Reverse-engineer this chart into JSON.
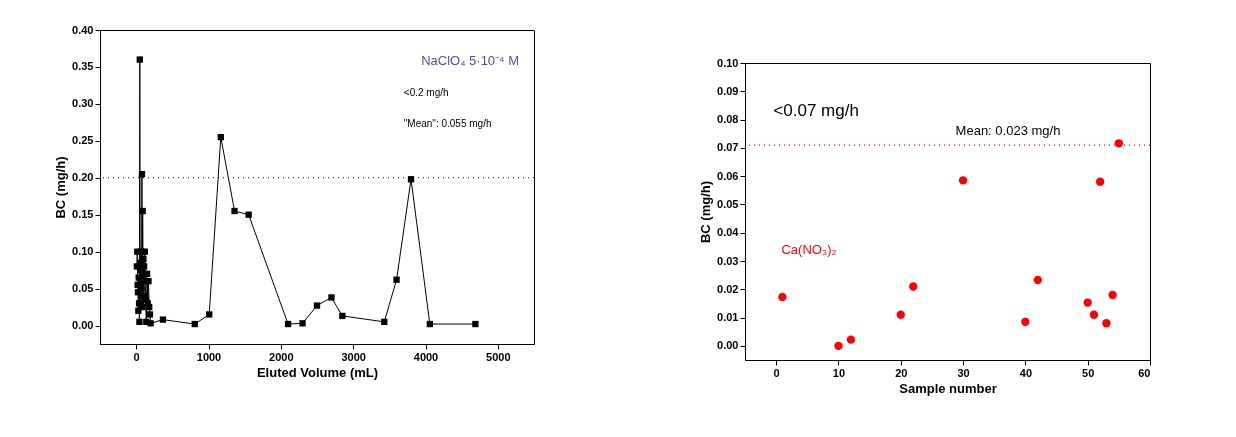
{
  "chart_data": [
    {
      "type": "line",
      "xlabel": "Eluted Volume (mL)",
      "ylabel": "BC (mg/h)",
      "xlim": [
        -500,
        5500
      ],
      "xticks": [
        0,
        1000,
        2000,
        3000,
        4000,
        5000
      ],
      "ylim": [
        -0.025,
        0.4
      ],
      "yticks": [
        {
          "value": 0,
          "label": "0.00"
        },
        0.05,
        {
          "value": 0.1,
          "label": "0.10"
        },
        0.15,
        {
          "value": 0.2,
          "label": "0.20"
        },
        0.25,
        {
          "value": 0.3,
          "label": "0.30"
        },
        0.35,
        {
          "value": 0.4,
          "label": "0.40"
        }
      ],
      "grid": false,
      "marker": "square",
      "line_style": "solid",
      "series": [
        {
          "color": "#000000",
          "x": [
            10,
            15,
            20,
            25,
            30,
            35,
            40,
            45,
            50,
            55,
            60,
            65,
            70,
            75,
            80,
            85,
            90,
            95,
            100,
            105,
            110,
            115,
            120,
            130,
            140,
            150,
            160,
            170,
            180,
            190,
            200,
            370,
            810,
            1010,
            1170,
            1360,
            1555,
            2100,
            2300,
            2500,
            2700,
            2850,
            3430,
            3600,
            3800,
            4060,
            4690
          ],
          "values": [
            0.08,
            0.1,
            0.055,
            0.045,
            0.02,
            0.065,
            0.03,
            0.005,
            0.36,
            0.075,
            0.085,
            0.03,
            0.1,
            0.05,
            0.205,
            0.025,
            0.155,
            0.07,
            0.09,
            0.04,
            0.08,
            0.06,
            0.1,
            0.035,
            0.005,
            0.07,
            0.03,
            0.06,
            0.025,
            0.015,
            0.003,
            0.008,
            0.002,
            0.015,
            0.255,
            0.155,
            0.15,
            0.002,
            0.003,
            0.027,
            0.038,
            0.013,
            0.005,
            0.062,
            0.198,
            0.002,
            0.002
          ]
        }
      ],
      "ref_lines": [
        {
          "axis": "y",
          "value": 0.2,
          "color": "#000000",
          "line_style": "dotted"
        }
      ],
      "annotations": [
        "NaClO₄ 5·10⁻⁴ M",
        "<0.2 mg/h",
        "\"Mean\": 0.055 mg/h"
      ]
    },
    {
      "type": "scatter",
      "xlabel": "Sample number",
      "ylabel": "BC (mg/h)",
      "xlim": [
        -5,
        60
      ],
      "xticks": [
        0,
        10,
        20,
        30,
        40,
        50,
        60
      ],
      "ylim": [
        -0.005,
        0.1
      ],
      "yticks": [
        {
          "value": 0,
          "label": "0.00"
        },
        0.01,
        0.02,
        0.03,
        0.04,
        0.05,
        0.06,
        0.07,
        0.08,
        0.09,
        {
          "value": 0.1,
          "label": "0.10"
        }
      ],
      "grid": false,
      "marker": "circle",
      "series": [
        {
          "color": "#ff0000",
          "x": [
            1,
            10,
            12,
            20,
            22,
            30,
            40,
            42,
            50,
            51,
            52,
            53,
            54,
            55
          ],
          "values": [
            0.0173,
            0,
            0.0022,
            0.011,
            0.021,
            0.0585,
            0.0085,
            0.0233,
            0.0153,
            0.011,
            0.058,
            0.008,
            0.018,
            0.0716
          ]
        }
      ],
      "ref_lines": [
        {
          "axis": "y",
          "value": 0.071,
          "color": "#ff0000",
          "line_style": "dotted"
        }
      ],
      "annotations": [
        "<0.07 mg/h",
        "Ca(NO₃)₂",
        "Mean: 0.023 mg/h"
      ]
    }
  ]
}
